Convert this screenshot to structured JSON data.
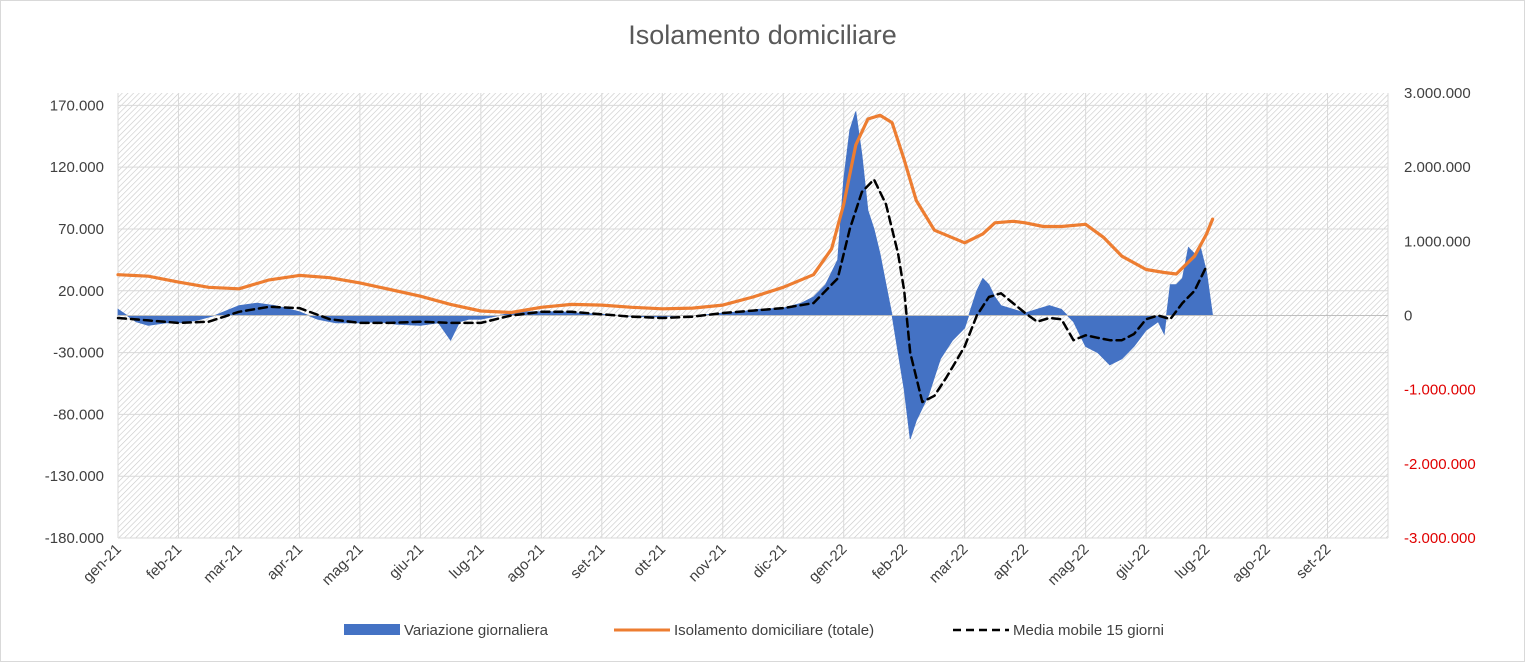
{
  "chart_data": {
    "type": "line",
    "title": "Isolamento domiciliare",
    "x_ticks": [
      "gen-21",
      "feb-21",
      "mar-21",
      "apr-21",
      "mag-21",
      "giu-21",
      "lug-21",
      "ago-21",
      "set-21",
      "ott-21",
      "nov-21",
      "dic-21",
      "gen-22",
      "feb-22",
      "mar-22",
      "apr-22",
      "mag-22",
      "giu-22",
      "lug-22",
      "ago-22",
      "set-22"
    ],
    "y_left": {
      "ylim": [
        -180000,
        180000
      ],
      "ticks": [
        170000,
        120000,
        70000,
        20000,
        -30000,
        -80000,
        -130000,
        -180000
      ],
      "tick_labels": [
        "170.000",
        "120.000",
        "70.000",
        "20.000",
        "-30.000",
        "-80.000",
        "-130.000",
        "-180.000"
      ]
    },
    "y_right": {
      "ylim": [
        -3000000,
        3000000
      ],
      "ticks": [
        3000000,
        2000000,
        1000000,
        0,
        -1000000,
        -2000000,
        -3000000
      ],
      "tick_labels": [
        "3.000.000",
        "2.000.000",
        "1.000.000",
        "0",
        "-1.000.000",
        "-2.000.000",
        "-3.000.000"
      ]
    },
    "legend_position": "bottom",
    "series": [
      {
        "name": "Variazione giornaliera",
        "kind": "area",
        "axis": "left",
        "color": "#4472c4",
        "x_month_index": [
          0,
          0.3,
          0.5,
          0.8,
          1,
          1.3,
          1.6,
          2,
          2.3,
          2.6,
          3,
          3.3,
          3.6,
          4,
          4.3,
          4.6,
          5,
          5.3,
          5.5,
          5.65,
          5.8,
          6,
          6.3,
          6.6,
          7,
          7.3,
          7.6,
          8,
          8.3,
          8.6,
          9,
          9.3,
          9.6,
          10,
          10.3,
          10.6,
          11,
          11.3,
          11.5,
          11.7,
          11.9,
          12,
          12.1,
          12.2,
          12.3,
          12.4,
          12.5,
          12.6,
          12.7,
          12.8,
          12.9,
          13,
          13.1,
          13.2,
          13.3,
          13.4,
          13.5,
          13.6,
          13.8,
          14,
          14.2,
          14.3,
          14.4,
          14.5,
          14.6,
          14.8,
          15,
          15.2,
          15.4,
          15.6,
          15.8,
          16,
          16.2,
          16.4,
          16.6,
          16.8,
          17,
          17.2,
          17.3,
          17.4,
          17.5,
          17.6,
          17.7,
          17.8,
          17.9,
          18.0,
          18.1
        ],
        "values": [
          5000,
          -5000,
          -8000,
          -6000,
          -6000,
          -4000,
          0,
          8000,
          10000,
          8000,
          3000,
          -3000,
          -6000,
          -6000,
          -5000,
          -7000,
          -8000,
          -6000,
          -20000,
          -5000,
          -3000,
          -3000,
          0,
          3000,
          3000,
          3000,
          2000,
          1000,
          0,
          -1000,
          -1000,
          0,
          0,
          2000,
          3000,
          5000,
          6000,
          10000,
          15000,
          25000,
          45000,
          110000,
          150000,
          165000,
          130000,
          85000,
          70000,
          50000,
          25000,
          0,
          -30000,
          -60000,
          -100000,
          -85000,
          -75000,
          -65000,
          -50000,
          -35000,
          -20000,
          -10000,
          20000,
          30000,
          25000,
          15000,
          8000,
          5000,
          2000,
          5000,
          8000,
          5000,
          -5000,
          -25000,
          -30000,
          -40000,
          -35000,
          -25000,
          -12000,
          -5000,
          -15000,
          25000,
          25000,
          30000,
          55000,
          50000,
          55000,
          35000,
          0
        ]
      },
      {
        "name": "Isolamento domiciliare (totale)",
        "kind": "line",
        "axis": "right",
        "color": "#ed7d31",
        "x_month_index": [
          0,
          0.5,
          1,
          1.5,
          2,
          2.5,
          3,
          3.5,
          4,
          4.5,
          5,
          5.5,
          6,
          6.5,
          7,
          7.5,
          8,
          8.5,
          9,
          9.5,
          10,
          10.5,
          11,
          11.5,
          11.8,
          12,
          12.2,
          12.4,
          12.6,
          12.8,
          13,
          13.2,
          13.5,
          14,
          14.3,
          14.5,
          14.8,
          15,
          15.3,
          15.6,
          16,
          16.3,
          16.6,
          17,
          17.3,
          17.5,
          17.8,
          18,
          18.1
        ],
        "values": [
          550000,
          530000,
          450000,
          380000,
          360000,
          480000,
          540000,
          510000,
          440000,
          350000,
          260000,
          150000,
          60000,
          40000,
          110000,
          150000,
          140000,
          110000,
          90000,
          100000,
          140000,
          250000,
          380000,
          550000,
          900000,
          1500000,
          2300000,
          2650000,
          2700000,
          2600000,
          2100000,
          1550000,
          1150000,
          980000,
          1100000,
          1250000,
          1270000,
          1250000,
          1200000,
          1200000,
          1230000,
          1050000,
          800000,
          620000,
          580000,
          560000,
          800000,
          1100000,
          1300000
        ]
      },
      {
        "name": "Media mobile 15 giorni",
        "kind": "line",
        "axis": "left",
        "color": "#000000",
        "dash": "dashed",
        "x_month_index": [
          0,
          0.5,
          1,
          1.5,
          2,
          2.5,
          3,
          3.5,
          4,
          4.5,
          5,
          5.5,
          6,
          6.5,
          7,
          7.5,
          8,
          8.5,
          9,
          9.5,
          10,
          10.5,
          11,
          11.5,
          11.9,
          12.1,
          12.3,
          12.5,
          12.7,
          12.9,
          13,
          13.1,
          13.3,
          13.5,
          13.7,
          14,
          14.2,
          14.4,
          14.6,
          14.8,
          15,
          15.2,
          15.4,
          15.6,
          15.8,
          16,
          16.2,
          16.4,
          16.6,
          16.8,
          17,
          17.2,
          17.4,
          17.6,
          17.8,
          18.0
        ],
        "values": [
          -2000,
          -4000,
          -6000,
          -5000,
          3000,
          7000,
          6000,
          -3000,
          -6000,
          -6000,
          -5000,
          -6000,
          -6000,
          0,
          3000,
          3000,
          1000,
          -1000,
          -2000,
          -1000,
          2000,
          4000,
          6000,
          10000,
          30000,
          70000,
          100000,
          110000,
          90000,
          50000,
          20000,
          -30000,
          -70000,
          -65000,
          -50000,
          -25000,
          0,
          15000,
          18000,
          10000,
          2000,
          -5000,
          -2000,
          -3000,
          -20000,
          -16000,
          -18000,
          -20000,
          -20000,
          -15000,
          -3000,
          0,
          -3000,
          10000,
          20000,
          40000
        ]
      }
    ]
  }
}
